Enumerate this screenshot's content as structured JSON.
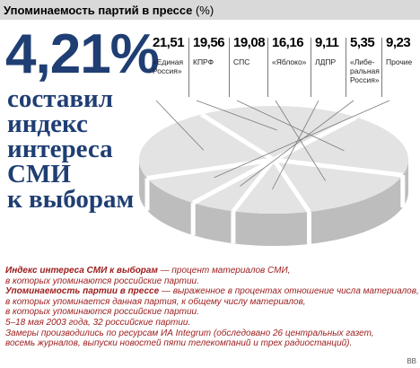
{
  "header": {
    "title": "Упоминаемость партий в прессе",
    "unit": "(%)"
  },
  "headline": {
    "value": "4,21%",
    "lines": [
      "составил",
      "индекс",
      "интереса",
      "СМИ",
      "к выборам"
    ]
  },
  "chart_data": {
    "type": "pie",
    "title": "Упоминаемость партий в прессе (%)",
    "slices": [
      {
        "label": "«Единая Россия»",
        "value": 21.51,
        "display": "21,51"
      },
      {
        "label": "КПРФ",
        "value": 19.56,
        "display": "19,56"
      },
      {
        "label": "СПС",
        "value": 19.08,
        "display": "19,08"
      },
      {
        "label": "«Яблоко»",
        "value": 16.16,
        "display": "16,16"
      },
      {
        "label": "ЛДПР",
        "value": 9.11,
        "display": "9,11"
      },
      {
        "label": "«Либеральная Россия»",
        "value": 5.35,
        "display": "5,35"
      },
      {
        "label": "Прочие",
        "value": 9.23,
        "display": "9,23"
      }
    ],
    "labels_multiline": [
      [
        "«Единая",
        "Россия»"
      ],
      [
        "КПРФ"
      ],
      [
        "СПС"
      ],
      [
        "«Яблоко»"
      ],
      [
        "ЛДПР"
      ],
      [
        "«Либе-",
        "ральная",
        "Россия»"
      ],
      [
        "Прочие"
      ]
    ],
    "colors": {
      "top": "#e3e3e3",
      "side": "#bdbdbd",
      "gap": "#ffffff",
      "leader": "#7a7a7a"
    }
  },
  "notes": {
    "def1_term": "Индекс интереса СМИ к выборам",
    "def1_text": " — процент материалов СМИ,",
    "def1_line2": "в которых упоминаются российские партии.",
    "def2_term": "Упоминаемость партии в прессе",
    "def2_text": " — выраженное в процентах отношение числа материалов,",
    "def2_line2": "в которых упоминается данная партия, к общему числу материалов,",
    "def2_line3": "в которых упоминаются российские партии.",
    "period": "5–18 мая 2003 года, 32 российские партии.",
    "method_line1": "Замеры производились по ресурсам ИА Integrum (обследовано 26 центральных газет,",
    "method_line2": "восемь журналов, выпуски новостей пяти телекомпаний и трех радиостанций)."
  },
  "source_tag": "ВВ"
}
